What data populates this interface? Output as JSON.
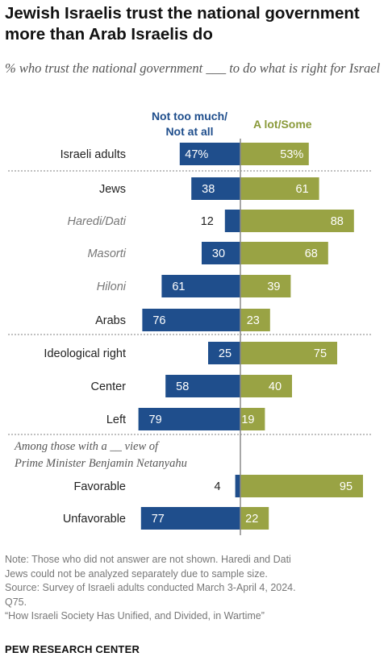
{
  "title": "Jewish Israelis trust the national government more than Arab Israelis do",
  "subtitle": "% who trust the national government ___ to do what is right for Israel",
  "colors": {
    "distrust": "#1f4e8c",
    "trust": "#99a344",
    "legend_distrust": "#1f4e8c",
    "legend_trust": "#8a9a3a"
  },
  "chart_data": {
    "type": "bar",
    "subtype": "diverging-horizontal-bar",
    "series": [
      {
        "name": "Not too much/ Not at all",
        "values": [
          "47%",
          "38",
          "12",
          "30",
          "61",
          "76",
          "25",
          "58",
          "79",
          "4",
          "77"
        ]
      },
      {
        "name": "A lot/Some",
        "values": [
          "53%",
          "61",
          "88",
          "68",
          "39",
          "23",
          "75",
          "40",
          "19",
          "95",
          "22"
        ]
      }
    ],
    "categories": [
      "Israeli adults",
      "Jews",
      "Haredi/Dati",
      "Masorti",
      "Hiloni",
      "Arabs",
      "Ideological right",
      "Center",
      "Left",
      "Favorable",
      "Unfavorable"
    ],
    "subcategories": [
      "Haredi/Dati",
      "Masorti",
      "Hiloni"
    ],
    "group_label": "Among those with a __ view of Prime Minister Benjamin Netanyahu",
    "distrust": [
      47,
      38,
      12,
      30,
      61,
      76,
      25,
      58,
      79,
      4,
      77
    ],
    "trust": [
      53,
      61,
      88,
      68,
      39,
      23,
      75,
      40,
      19,
      95,
      22
    ],
    "value_labels_distrust": [
      "47%",
      "38",
      "12",
      "30",
      "61",
      "76",
      "25",
      "58",
      "79",
      "4",
      "77"
    ],
    "value_labels_trust": [
      "53%",
      "61",
      "88",
      "68",
      "39",
      "23",
      "75",
      "40",
      "19",
      "95",
      "22"
    ],
    "legend_placement": "top",
    "grid": false
  },
  "notes": [
    "Note: Those who did not answer are not shown. Haredi and Dati",
    "Jews could not be analyzed separately due to sample size.",
    "Source: Survey of Israeli adults conducted March 3-April 4, 2024.",
    "Q75.",
    "“How Israeli Society Has Unified, and Divided, in Wartime”"
  ],
  "brand": "PEW RESEARCH CENTER"
}
